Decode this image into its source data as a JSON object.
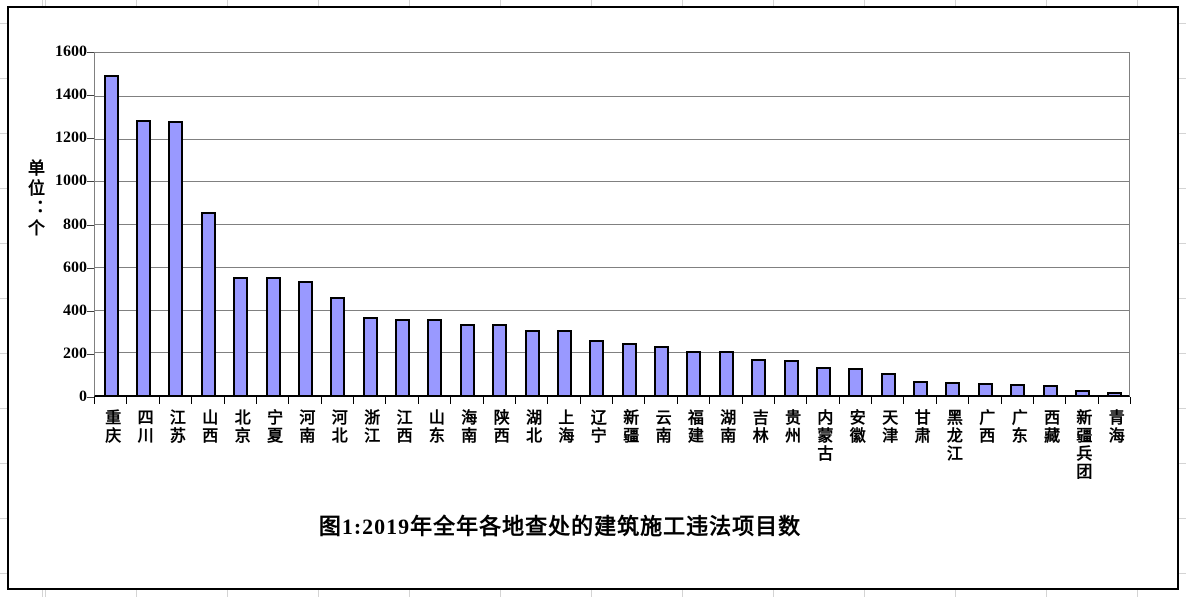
{
  "chart_data": {
    "type": "bar",
    "title": "图1:2019年全年各地查处的建筑施工违法项目数",
    "y_axis_unit_label": "单位：个",
    "categories": [
      "重庆",
      "四川",
      "江苏",
      "山西",
      "北京",
      "宁夏",
      "河南",
      "河北",
      "浙江",
      "江西",
      "山东",
      "海南",
      "陕西",
      "湖北",
      "上海",
      "辽宁",
      "新疆",
      "云南",
      "福建",
      "湖南",
      "吉林",
      "贵州",
      "内蒙古",
      "安徽",
      "天津",
      "甘肃",
      "黑龙江",
      "广西",
      "广东",
      "西藏",
      "新疆兵团",
      "青海"
    ],
    "values": [
      1497,
      1288,
      1282,
      855,
      552,
      552,
      533,
      459,
      366,
      357,
      355,
      333,
      330,
      306,
      303,
      257,
      242,
      230,
      207,
      204,
      167,
      163,
      130,
      127,
      101,
      65,
      60,
      56,
      52,
      48,
      25,
      15
    ],
    "ylim": [
      0,
      1600
    ],
    "ytick_interval": 200,
    "yticks": [
      1600,
      1400,
      1200,
      1000,
      800,
      600,
      400,
      200,
      0
    ],
    "grid": "horizontal",
    "legend_position": "none",
    "bar_fill_color": "#9999FF",
    "bar_border_color": "#000000",
    "gridline_color": "#808080",
    "axis_color": "#000000"
  }
}
